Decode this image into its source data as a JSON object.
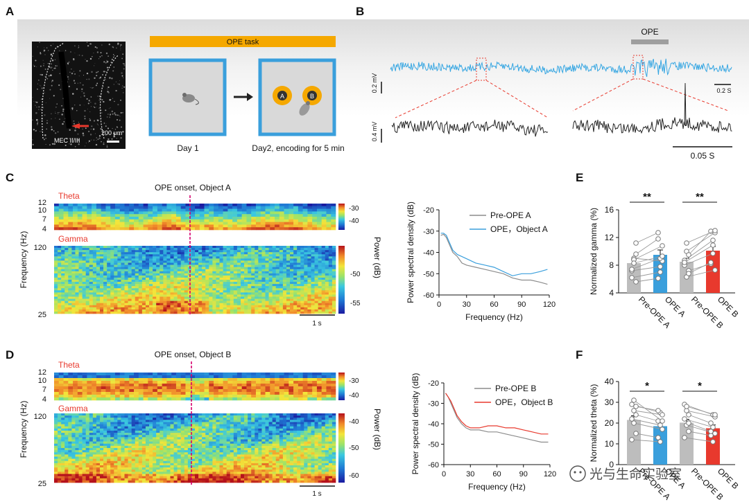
{
  "panels": {
    "a": "A",
    "b": "B",
    "c": "C",
    "d": "D",
    "e": "E",
    "f": "F"
  },
  "panel_a": {
    "task_title": "OPE task",
    "histology_region": "MEC II/III",
    "scale_bar": "200 μm",
    "object_a": "A",
    "object_b": "B",
    "day1_label": "Day 1",
    "day2_label": "Day2, encoding for 5 min"
  },
  "panel_b": {
    "ope_label": "OPE",
    "scale_voltage_top": "0.2 mV",
    "scale_time_top": "0.2 S",
    "scale_voltage_bottom": "0.4 mV",
    "scale_time_bottom": "0.05 S"
  },
  "panel_c": {
    "onset_label": "OPE onset, Object A",
    "theta_label": "Theta",
    "gamma_label": "Gamma",
    "ylabel": "Frequency (Hz)",
    "theta_ticks": [
      "12",
      "10",
      "7",
      "4"
    ],
    "gamma_ticks": [
      "120",
      "25"
    ],
    "theta_cbar_ticks": [
      "-30",
      "-40"
    ],
    "gamma_cbar_ticks": [
      "-50",
      "-55"
    ],
    "cbar_label": "Power (dB)",
    "time_scale": "1 s"
  },
  "panel_d": {
    "onset_label": "OPE onset, Object B",
    "theta_label": "Theta",
    "gamma_label": "Gamma",
    "ylabel": "Frequency (Hz)",
    "theta_ticks": [
      "12",
      "10",
      "7",
      "4"
    ],
    "gamma_ticks": [
      "120",
      "25"
    ],
    "theta_cbar_ticks": [
      "-30",
      "-40"
    ],
    "gamma_cbar_ticks": [
      "-40",
      "-50",
      "-60"
    ],
    "cbar_label": "Power (dB)",
    "time_scale": "1 s"
  },
  "watermark": "光与生命实验室",
  "colors": {
    "orange": "#f5a800",
    "blue": "#3a9fdc",
    "red": "#e8392d",
    "gray": "#bdbdbd",
    "dark": "#222222"
  },
  "chart_data": [
    {
      "id": "psd_c",
      "type": "line",
      "xlabel": "Frequency (Hz)",
      "ylabel": "Power spectral density (dB)",
      "xlim": [
        0,
        120
      ],
      "ylim": [
        -60,
        -20
      ],
      "xticks": [
        0,
        30,
        60,
        90,
        120
      ],
      "yticks": [
        -20,
        -30,
        -40,
        -50,
        -60
      ],
      "series": [
        {
          "name": "Pre-OPE A",
          "color": "#8c8c8c",
          "x": [
            2,
            5,
            8,
            12,
            15,
            20,
            25,
            30,
            40,
            50,
            60,
            70,
            80,
            90,
            100,
            110,
            118
          ],
          "y": [
            -32,
            -31.5,
            -33,
            -37,
            -40,
            -42,
            -45,
            -46,
            -47,
            -48,
            -49,
            -50,
            -52,
            -53,
            -53,
            -54,
            -55
          ]
        },
        {
          "name": "OPE，Object A",
          "color": "#3a9fdc",
          "x": [
            2,
            5,
            8,
            12,
            15,
            20,
            25,
            30,
            40,
            50,
            60,
            70,
            80,
            90,
            100,
            110,
            118
          ],
          "y": [
            -31,
            -31,
            -32,
            -36,
            -39,
            -41,
            -42,
            -43,
            -45,
            -46,
            -47,
            -49,
            -51,
            -50,
            -50,
            -49,
            -48
          ]
        }
      ]
    },
    {
      "id": "psd_d",
      "type": "line",
      "xlabel": "Frequency (Hz)",
      "ylabel": "Power spectral density (dB)",
      "xlim": [
        0,
        120
      ],
      "ylim": [
        -60,
        -20
      ],
      "xticks": [
        0,
        30,
        60,
        90,
        120
      ],
      "yticks": [
        -20,
        -30,
        -40,
        -50,
        -60
      ],
      "series": [
        {
          "name": "Pre-OPE B",
          "color": "#8c8c8c",
          "x": [
            2,
            5,
            8,
            12,
            15,
            20,
            25,
            30,
            40,
            50,
            60,
            70,
            80,
            90,
            100,
            110,
            118
          ],
          "y": [
            -25,
            -27,
            -30,
            -34,
            -37,
            -40,
            -42,
            -43,
            -43,
            -44,
            -44,
            -45,
            -46,
            -47,
            -48,
            -49,
            -49
          ]
        },
        {
          "name": "OPE，Object B",
          "color": "#e8392d",
          "x": [
            2,
            5,
            8,
            12,
            15,
            20,
            25,
            30,
            40,
            50,
            60,
            70,
            80,
            90,
            100,
            110,
            118
          ],
          "y": [
            -25,
            -27,
            -29,
            -33,
            -36,
            -39,
            -41,
            -42,
            -42,
            -41,
            -41,
            -42,
            -42,
            -43,
            -44,
            -45,
            -45
          ]
        }
      ]
    },
    {
      "id": "gamma_bars",
      "type": "bar",
      "ylabel": "Normalized gamma (%)",
      "ylim": [
        4,
        16
      ],
      "yticks": [
        4,
        8,
        12,
        16
      ],
      "categories": [
        "Pre-OPE A",
        "OPE A",
        "Pre-OPE B",
        "OPE B"
      ],
      "values": [
        8.3,
        9.5,
        8.5,
        10.1
      ],
      "errors": [
        0.5,
        0.7,
        0.5,
        0.6
      ],
      "colors": [
        "#bdbdbd",
        "#3a9fdc",
        "#bdbdbd",
        "#e8392d"
      ],
      "pairs": [
        [
          7.2,
          7.8
        ],
        [
          9.0,
          8.6
        ],
        [
          11.2,
          12.7
        ],
        [
          7.4,
          9.0
        ],
        [
          8.8,
          10.8
        ],
        [
          9.6,
          11.8
        ],
        [
          6.2,
          7.0
        ],
        [
          8.3,
          9.3
        ],
        [
          5.6,
          6.1
        ]
      ],
      "pairs_b": [
        [
          8.0,
          9.7
        ],
        [
          10.0,
          12.7
        ],
        [
          7.2,
          8.2
        ],
        [
          8.7,
          11.6
        ],
        [
          6.3,
          7.3
        ],
        [
          9.5,
          12.9
        ],
        [
          8.4,
          10.9
        ],
        [
          11.2,
          13.0
        ],
        [
          6.8,
          8.4
        ]
      ],
      "significance": [
        "**",
        "**"
      ]
    },
    {
      "id": "theta_bars",
      "type": "bar",
      "ylabel": "Normalized theta (%)",
      "ylim": [
        0,
        40
      ],
      "yticks": [
        0,
        10,
        20,
        30,
        40
      ],
      "categories": [
        "Pre-OPE A",
        "OPE A",
        "Pre-OPE B",
        "OPE B"
      ],
      "values": [
        21.5,
        18.5,
        20.2,
        17.5
      ],
      "errors": [
        2.0,
        1.8,
        1.6,
        1.6
      ],
      "colors": [
        "#bdbdbd",
        "#3a9fdc",
        "#bdbdbd",
        "#e8392d"
      ],
      "pairs": [
        [
          29,
          25
        ],
        [
          26,
          24
        ],
        [
          24,
          21
        ],
        [
          22,
          19
        ],
        [
          20,
          17
        ],
        [
          15,
          13
        ],
        [
          12,
          11
        ],
        [
          31,
          21
        ],
        [
          28,
          26
        ]
      ],
      "pairs_b": [
        [
          29,
          24
        ],
        [
          26,
          23
        ],
        [
          24,
          20
        ],
        [
          22,
          18
        ],
        [
          19,
          15
        ],
        [
          16,
          14
        ],
        [
          13,
          11
        ],
        [
          28,
          24
        ],
        [
          20,
          16
        ]
      ],
      "significance": [
        "*",
        "*"
      ]
    }
  ]
}
